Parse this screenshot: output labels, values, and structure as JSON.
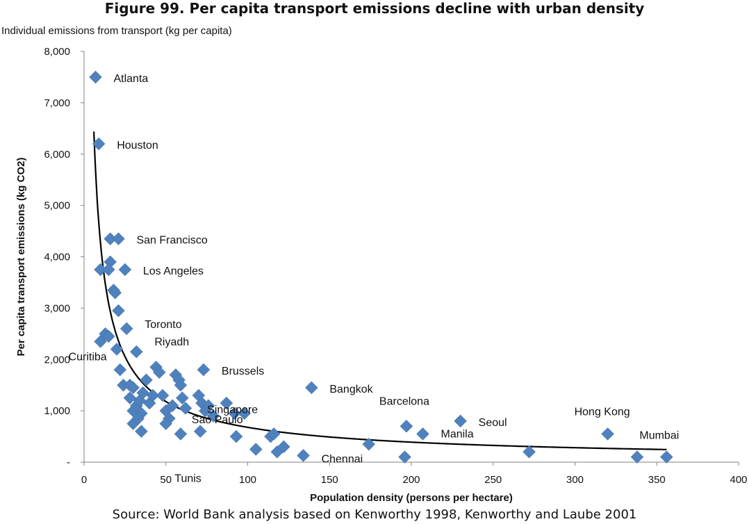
{
  "chart_data": {
    "type": "scatter",
    "title": "Figure 99. Per capita transport emissions decline with urban density",
    "subtitle": "Individual emissions from transport (kg per capita)",
    "xlabel": "Population density (persons per hectare)",
    "ylabel": "Per capita transport emissions (kg CO2)",
    "xlim": [
      0,
      400
    ],
    "ylim": [
      0,
      8000
    ],
    "x_ticks": [
      "0",
      "50",
      "100",
      "150",
      "200",
      "250",
      "300",
      "350",
      "400"
    ],
    "y_ticks": [
      "-",
      "1,000",
      "2,000",
      "3,000",
      "4,000",
      "5,000",
      "6,000",
      "7,000",
      "8,000"
    ],
    "marker_color": "#4f81bd",
    "trendline_color": "#000000",
    "source": "Source: World Bank analysis based on Kenworthy 1998, Kenworthy and Laube 2001",
    "labeled_points": [
      {
        "label": "Atlanta",
        "x": 7,
        "y": 7500
      },
      {
        "label": "Houston",
        "x": 9,
        "y": 6200
      },
      {
        "label": "San Francisco",
        "x": 21,
        "y": 4350
      },
      {
        "label": "Los Angeles",
        "x": 25,
        "y": 3750
      },
      {
        "label": "Toronto",
        "x": 26,
        "y": 2600
      },
      {
        "label": "Riyadh",
        "x": 32,
        "y": 2150
      },
      {
        "label": "Curitiba",
        "x": 10,
        "y": 2350
      },
      {
        "label": "Brussels",
        "x": 73,
        "y": 1800
      },
      {
        "label": "Bangkok",
        "x": 139,
        "y": 1450
      },
      {
        "label": "Sao Paulo",
        "x": 98,
        "y": 950
      },
      {
        "label": "Singapore",
        "x": 116,
        "y": 550
      },
      {
        "label": "Tunis",
        "x": 105,
        "y": 250
      },
      {
        "label": "Chennai",
        "x": 134,
        "y": 130
      },
      {
        "label": "Barcelona",
        "x": 197,
        "y": 700
      },
      {
        "label": "Manila",
        "x": 207,
        "y": 550
      },
      {
        "label": "Seoul",
        "x": 230,
        "y": 800
      },
      {
        "label": "Hong Kong",
        "x": 320,
        "y": 550
      },
      {
        "label": "Mumbai",
        "x": 356,
        "y": 100
      }
    ],
    "other_points": [
      {
        "x": 16,
        "y": 4350
      },
      {
        "x": 10,
        "y": 3750
      },
      {
        "x": 16,
        "y": 3900
      },
      {
        "x": 15,
        "y": 3750
      },
      {
        "x": 18,
        "y": 3350
      },
      {
        "x": 19,
        "y": 3300
      },
      {
        "x": 21,
        "y": 2950
      },
      {
        "x": 13,
        "y": 2500
      },
      {
        "x": 15,
        "y": 2450
      },
      {
        "x": 20,
        "y": 2200
      },
      {
        "x": 22,
        "y": 1800
      },
      {
        "x": 24,
        "y": 1500
      },
      {
        "x": 28,
        "y": 1500
      },
      {
        "x": 30,
        "y": 1450
      },
      {
        "x": 28,
        "y": 1250
      },
      {
        "x": 30,
        "y": 1000
      },
      {
        "x": 32,
        "y": 1100
      },
      {
        "x": 34,
        "y": 1200
      },
      {
        "x": 36,
        "y": 1350
      },
      {
        "x": 38,
        "y": 1600
      },
      {
        "x": 35,
        "y": 950
      },
      {
        "x": 30,
        "y": 750
      },
      {
        "x": 33,
        "y": 850
      },
      {
        "x": 35,
        "y": 600
      },
      {
        "x": 40,
        "y": 1150
      },
      {
        "x": 42,
        "y": 1300
      },
      {
        "x": 44,
        "y": 1850
      },
      {
        "x": 46,
        "y": 1750
      },
      {
        "x": 48,
        "y": 1300
      },
      {
        "x": 50,
        "y": 1000
      },
      {
        "x": 52,
        "y": 850
      },
      {
        "x": 50,
        "y": 750
      },
      {
        "x": 54,
        "y": 1100
      },
      {
        "x": 56,
        "y": 1700
      },
      {
        "x": 58,
        "y": 1600
      },
      {
        "x": 59,
        "y": 1500
      },
      {
        "x": 60,
        "y": 1250
      },
      {
        "x": 62,
        "y": 1050
      },
      {
        "x": 59,
        "y": 550
      },
      {
        "x": 70,
        "y": 1300
      },
      {
        "x": 72,
        "y": 1150
      },
      {
        "x": 74,
        "y": 1000
      },
      {
        "x": 76,
        "y": 1100
      },
      {
        "x": 79,
        "y": 900
      },
      {
        "x": 71,
        "y": 600
      },
      {
        "x": 87,
        "y": 1150
      },
      {
        "x": 92,
        "y": 950
      },
      {
        "x": 93,
        "y": 500
      },
      {
        "x": 114,
        "y": 500
      },
      {
        "x": 118,
        "y": 200
      },
      {
        "x": 122,
        "y": 300
      },
      {
        "x": 174,
        "y": 350
      },
      {
        "x": 196,
        "y": 100
      },
      {
        "x": 272,
        "y": 200
      },
      {
        "x": 338,
        "y": 100
      }
    ],
    "trendline": {
      "type": "power",
      "a": 27000,
      "b": -0.8,
      "x_range": [
        6,
        356
      ]
    }
  }
}
